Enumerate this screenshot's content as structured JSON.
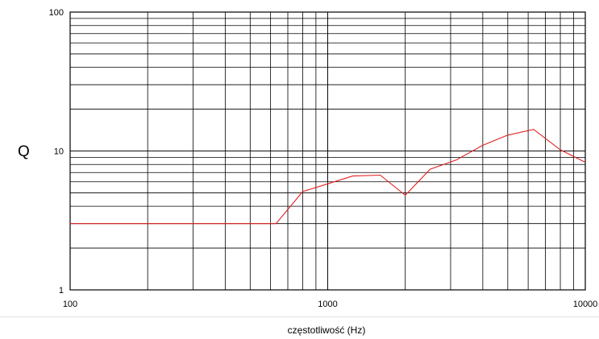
{
  "chart_data": {
    "type": "line",
    "title": "",
    "xlabel": "częstotliwość (Hz)",
    "ylabel": "Q",
    "xscale": "log",
    "yscale": "log",
    "xlim": [
      100,
      10000
    ],
    "ylim": [
      1,
      100
    ],
    "x_ticks": [
      "100",
      "1000",
      "10000"
    ],
    "y_ticks": [
      "1",
      "10",
      "100"
    ],
    "grid": true,
    "line_color": "#e02020",
    "series": [
      {
        "x": [
          100,
          630,
          800,
          1000,
          1250,
          1600,
          2000,
          2500,
          3150,
          4000,
          5000,
          6300,
          8000,
          10000
        ],
        "y": [
          3,
          3,
          5.1,
          5.8,
          6.6,
          6.7,
          4.8,
          7.4,
          8.6,
          11,
          13,
          14.3,
          10.2,
          8.3
        ]
      }
    ]
  }
}
